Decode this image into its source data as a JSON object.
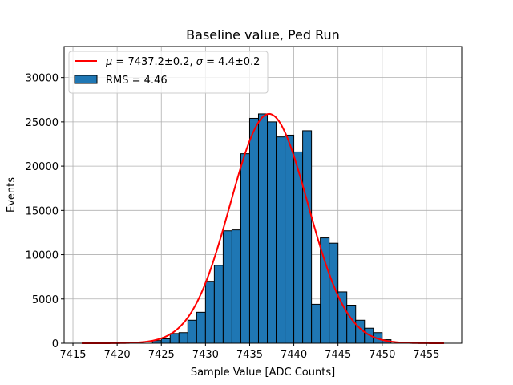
{
  "chart_data": {
    "type": "bar",
    "title": "Baseline value, Ped Run",
    "xlabel": "Sample Value [ADC Counts]",
    "ylabel": "Events",
    "xlim": [
      7414,
      7459
    ],
    "ylim": [
      0,
      33500
    ],
    "xticks": [
      7415,
      7420,
      7425,
      7430,
      7435,
      7440,
      7445,
      7450,
      7455
    ],
    "yticks": [
      0,
      5000,
      10000,
      15000,
      20000,
      25000,
      30000
    ],
    "grid": true,
    "legend_position": "top-left",
    "histogram": {
      "name": "RMS = 4.46",
      "color": "#1f77b4",
      "edgecolor": "#000000",
      "bin_width": 1,
      "bins": [
        {
          "x0": 7424,
          "count": 300
        },
        {
          "x0": 7425,
          "count": 500
        },
        {
          "x0": 7426,
          "count": 1100
        },
        {
          "x0": 7427,
          "count": 1200
        },
        {
          "x0": 7428,
          "count": 2600
        },
        {
          "x0": 7429,
          "count": 3500
        },
        {
          "x0": 7430,
          "count": 7000
        },
        {
          "x0": 7431,
          "count": 8800
        },
        {
          "x0": 7432,
          "count": 12700
        },
        {
          "x0": 7433,
          "count": 12800
        },
        {
          "x0": 7434,
          "count": 21400
        },
        {
          "x0": 7435,
          "count": 25400
        },
        {
          "x0": 7436,
          "count": 25900
        },
        {
          "x0": 7437,
          "count": 25000
        },
        {
          "x0": 7438,
          "count": 23300
        },
        {
          "x0": 7439,
          "count": 23500
        },
        {
          "x0": 7440,
          "count": 21600
        },
        {
          "x0": 7441,
          "count": 24000
        },
        {
          "x0": 7442,
          "count": 4400
        },
        {
          "x0": 7443,
          "count": 11900
        },
        {
          "x0": 7444,
          "count": 11300
        },
        {
          "x0": 7445,
          "count": 5800
        },
        {
          "x0": 7446,
          "count": 4300
        },
        {
          "x0": 7447,
          "count": 2600
        },
        {
          "x0": 7448,
          "count": 1700
        },
        {
          "x0": 7449,
          "count": 1200
        },
        {
          "x0": 7450,
          "count": 400
        }
      ]
    },
    "fit": {
      "name_prefix": "μ",
      "name_mid": " = 7437.2±0.2, ",
      "name_sigma": "σ",
      "name_suffix": " = 4.4±0.2",
      "type": "gaussian",
      "mu": 7437.2,
      "sigma": 4.4,
      "amplitude": 25900,
      "x_range": [
        7416,
        7457
      ],
      "color": "#ff0000"
    }
  }
}
